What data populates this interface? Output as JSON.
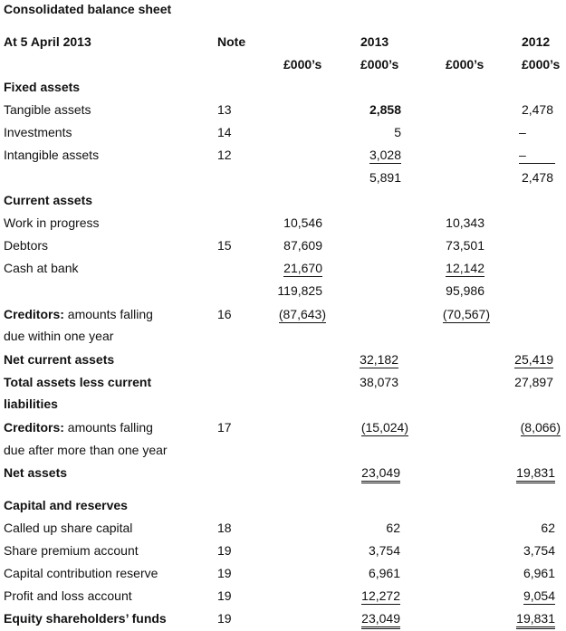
{
  "title": "Consolidated balance sheet",
  "header": {
    "date_label": "At 5 April 2013",
    "note_label": "Note",
    "year_2013": "2013",
    "year_2012": "2012",
    "unit": "£000’s"
  },
  "fixed_assets": {
    "heading": "Fixed assets",
    "rows": [
      {
        "label": "Tangible assets",
        "note": "13",
        "v2013": "2,858",
        "v2012": "2,478"
      },
      {
        "label": "Investments",
        "note": "14",
        "v2013": "5",
        "v2012": "–"
      },
      {
        "label": "Intangible assets",
        "note": "12",
        "v2013": "3,028",
        "v2012": "–"
      }
    ],
    "total_2013": "5,891",
    "total_2012": "2,478"
  },
  "current_assets": {
    "heading": "Current assets",
    "rows": [
      {
        "label": "Work in progress",
        "note": "",
        "s2013": "10,546",
        "s2012": "10,343"
      },
      {
        "label": "Debtors",
        "note": "15",
        "s2013": "87,609",
        "s2012": "73,501"
      },
      {
        "label": "Cash at bank",
        "note": "",
        "s2013": "21,670",
        "s2012": "12,142"
      }
    ],
    "subtotal_2013": "119,825",
    "subtotal_2012": "95,986"
  },
  "creditors_within": {
    "bold_label": "Creditors:",
    "label_rest": "amounts falling",
    "label_line2": "due within one year",
    "note": "16",
    "s2013": "(87,643)",
    "s2012": "(70,567)"
  },
  "net_current_assets": {
    "label": "Net current assets",
    "v2013": "32,182",
    "v2012": "25,419"
  },
  "total_assets": {
    "label_line1": "Total assets less current",
    "label_line2": "liabilities",
    "v2013": "38,073",
    "v2012": "27,897"
  },
  "creditors_after": {
    "bold_label": "Creditors:",
    "label_rest": "amounts falling",
    "label_line2": "due after more than one year",
    "note": "17",
    "v2013": "(15,024)",
    "v2012": "(8,066)"
  },
  "net_assets": {
    "label": "Net assets",
    "v2013": "23,049",
    "v2012": "19,831"
  },
  "capital": {
    "heading": "Capital and reserves",
    "rows": [
      {
        "label": "Called up share capital",
        "note": "18",
        "v2013": "62",
        "v2012": "62"
      },
      {
        "label": "Share premium account",
        "note": "19",
        "v2013": "3,754",
        "v2012": "3,754"
      },
      {
        "label": "Capital contribution reserve",
        "note": "19",
        "v2013": "6,961",
        "v2012": "6,961"
      },
      {
        "label": "Profit and loss account",
        "note": "19",
        "v2013": "12,272",
        "v2012": "9,054"
      }
    ]
  },
  "equity": {
    "label": "Equity shareholders’ funds",
    "note": "19",
    "v2013": "23,049",
    "v2012": "19,831"
  }
}
